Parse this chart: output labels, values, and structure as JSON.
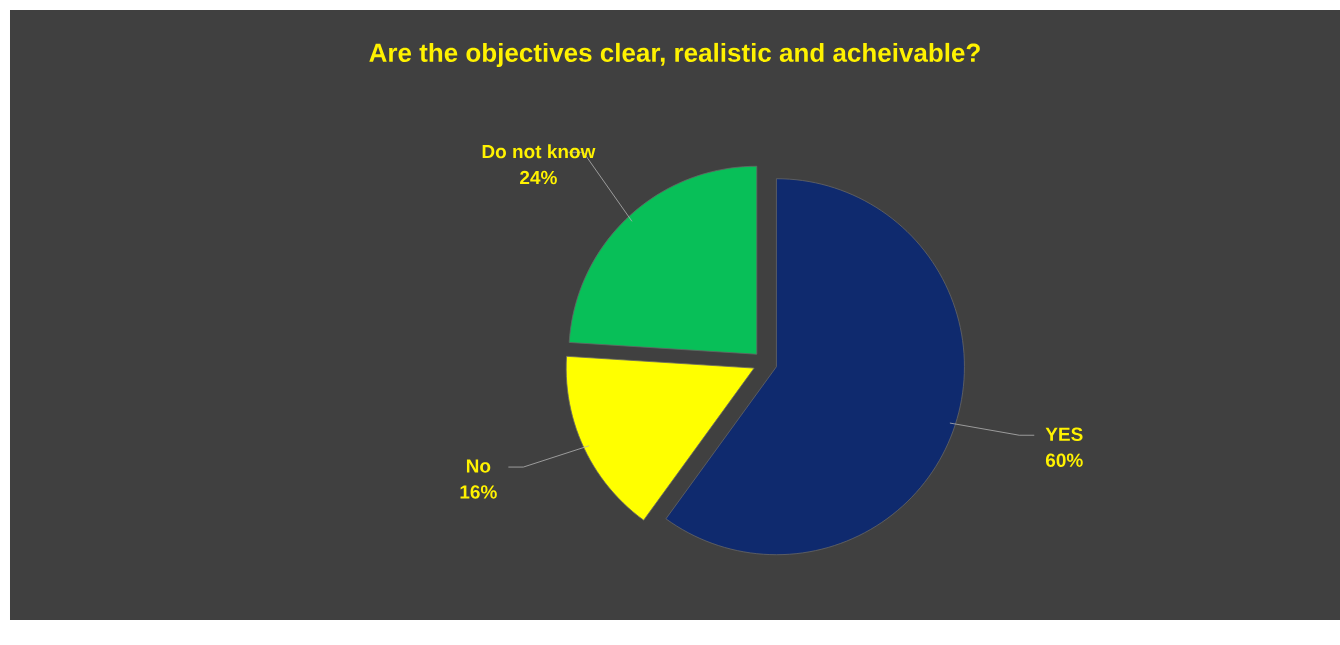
{
  "chart_data": {
    "type": "pie",
    "title": "Are the objectives clear, realistic and acheivable?",
    "categories": [
      "YES",
      "No",
      "Do not know"
    ],
    "values": [
      60,
      16,
      24
    ],
    "value_labels": [
      "60%",
      "16%",
      "24%"
    ],
    "colors": [
      "#0f2a6e",
      "#ffff00",
      "#08bf58"
    ]
  }
}
